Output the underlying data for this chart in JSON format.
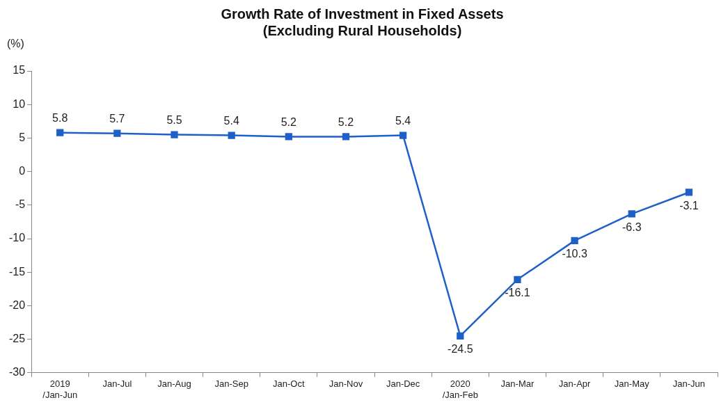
{
  "chart_data": {
    "type": "line",
    "title": "Growth Rate of Investment in Fixed Assets\n(Excluding Rural Households)",
    "ylabel": "(%)",
    "categories": [
      "2019\n/Jan-Jun",
      "Jan-Jul",
      "Jan-Aug",
      "Jan-Sep",
      "Jan-Oct",
      "Jan-Nov",
      "Jan-Dec",
      "2020\n/Jan-Feb",
      "Jan-Mar",
      "Jan-Apr",
      "Jan-May",
      "Jan-Jun"
    ],
    "series": [
      {
        "color": "#1f5fc8",
        "values": [
          5.8,
          5.7,
          5.5,
          5.4,
          5.2,
          5.2,
          5.4,
          -24.5,
          -16.1,
          -10.3,
          -6.3,
          -3.1
        ]
      }
    ],
    "ylim": [
      -30,
      15
    ],
    "yticks": [
      -30,
      -25,
      -20,
      -15,
      -10,
      -5,
      0,
      5,
      10,
      15
    ],
    "grid": false,
    "legend": false,
    "marker": "square",
    "line_style": "solid",
    "data_labels": true
  }
}
